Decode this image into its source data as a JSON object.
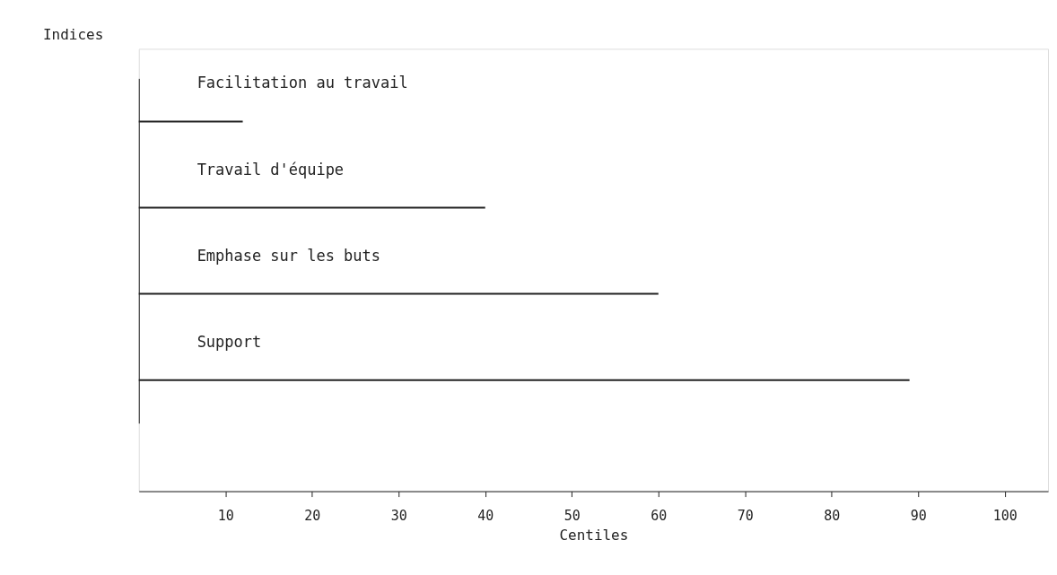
{
  "chart_data": {
    "type": "bar",
    "orientation": "horizontal",
    "xlabel": "Centiles",
    "ylabel": "Indices",
    "categories": [
      "Facilitation au travail",
      "Travail d'équipe",
      "Emphase sur les buts",
      "Support"
    ],
    "values": [
      12,
      40,
      60,
      89
    ],
    "color": "#222222",
    "xlim": [
      0,
      105
    ],
    "xticks": [
      10,
      20,
      30,
      40,
      50,
      60,
      70,
      80,
      90,
      100
    ],
    "grid": false
  }
}
